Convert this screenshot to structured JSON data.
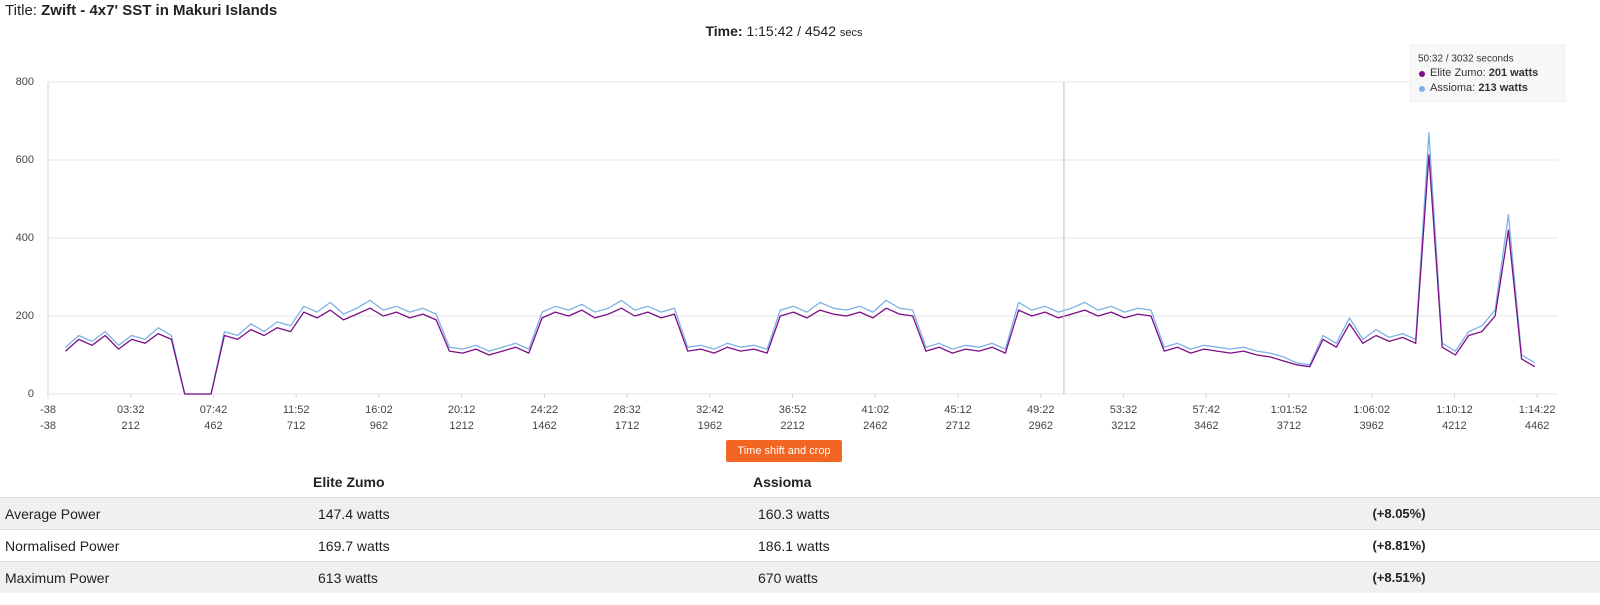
{
  "header": {
    "title_label": "Title:",
    "title": "Zwift - 4x7' SST in Makuri Islands"
  },
  "time": {
    "label": "Time:",
    "value": "1:15:42 / 4542",
    "unit": "secs"
  },
  "chart_data": {
    "type": "line",
    "x": [
      15,
      55,
      95,
      135,
      175,
      215,
      255,
      295,
      335,
      375,
      415,
      455,
      495,
      535,
      575,
      615,
      655,
      695,
      735,
      775,
      815,
      855,
      895,
      935,
      975,
      1015,
      1055,
      1095,
      1135,
      1175,
      1215,
      1255,
      1295,
      1335,
      1375,
      1415,
      1455,
      1495,
      1535,
      1575,
      1615,
      1655,
      1695,
      1735,
      1775,
      1815,
      1855,
      1895,
      1935,
      1975,
      2015,
      2055,
      2095,
      2135,
      2175,
      2215,
      2255,
      2295,
      2335,
      2375,
      2415,
      2455,
      2495,
      2535,
      2575,
      2615,
      2655,
      2695,
      2735,
      2775,
      2815,
      2855,
      2895,
      2935,
      2975,
      3015,
      3055,
      3095,
      3135,
      3175,
      3215,
      3255,
      3295,
      3335,
      3375,
      3415,
      3455,
      3495,
      3535,
      3575,
      3615,
      3655,
      3695,
      3735,
      3775,
      3815,
      3855,
      3895,
      3935,
      3975,
      4015,
      4055,
      4095,
      4135,
      4175,
      4215,
      4255,
      4295,
      4335,
      4375,
      4415,
      4455
    ],
    "series": [
      {
        "name": "Assioma",
        "color": "#7fb2e6",
        "values": [
          120,
          150,
          135,
          160,
          125,
          150,
          140,
          170,
          150,
          0,
          0,
          0,
          160,
          150,
          180,
          160,
          185,
          175,
          225,
          210,
          235,
          205,
          220,
          240,
          215,
          225,
          210,
          220,
          205,
          120,
          115,
          125,
          110,
          120,
          130,
          115,
          210,
          225,
          215,
          230,
          210,
          220,
          240,
          215,
          225,
          210,
          220,
          120,
          125,
          115,
          130,
          120,
          125,
          115,
          215,
          225,
          210,
          235,
          220,
          215,
          225,
          210,
          240,
          220,
          215,
          120,
          130,
          115,
          125,
          120,
          130,
          115,
          235,
          215,
          225,
          210,
          220,
          235,
          215,
          225,
          210,
          220,
          215,
          120,
          130,
          115,
          125,
          120,
          115,
          120,
          110,
          105,
          95,
          80,
          75,
          150,
          130,
          195,
          140,
          165,
          145,
          155,
          140,
          670,
          130,
          110,
          160,
          175,
          215,
          460,
          100,
          80
        ]
      },
      {
        "name": "Elite Zumo",
        "color": "#7b0f86",
        "values": [
          110,
          140,
          125,
          150,
          115,
          140,
          130,
          155,
          140,
          0,
          0,
          0,
          150,
          140,
          165,
          150,
          170,
          160,
          210,
          195,
          215,
          190,
          205,
          220,
          200,
          210,
          195,
          205,
          190,
          110,
          105,
          115,
          100,
          110,
          120,
          105,
          195,
          210,
          200,
          215,
          195,
          205,
          220,
          200,
          210,
          195,
          205,
          110,
          115,
          105,
          120,
          110,
          115,
          105,
          200,
          210,
          195,
          215,
          205,
          200,
          210,
          195,
          220,
          205,
          200,
          110,
          120,
          105,
          115,
          110,
          120,
          105,
          215,
          200,
          210,
          195,
          205,
          215,
          200,
          210,
          195,
          205,
          200,
          110,
          120,
          105,
          115,
          110,
          105,
          110,
          100,
          95,
          85,
          75,
          70,
          140,
          120,
          180,
          130,
          150,
          135,
          145,
          130,
          613,
          120,
          100,
          150,
          160,
          200,
          420,
          90,
          70
        ]
      }
    ],
    "xlim": [
      -38,
      4525
    ],
    "xticks": [
      -38,
      {
        "value": 212,
        "label": "03:32"
      },
      {
        "value": 462,
        "label": "07:42"
      },
      {
        "value": 712,
        "label": "11:52"
      },
      {
        "value": 962,
        "label": "16:02"
      },
      {
        "value": 1212,
        "label": "20:12"
      },
      {
        "value": 1462,
        "label": "24:22"
      },
      {
        "value": 1712,
        "label": "28:32"
      },
      {
        "value": 1962,
        "label": "32:42"
      },
      {
        "value": 2212,
        "label": "36:52"
      },
      {
        "value": 2462,
        "label": "41:02"
      },
      {
        "value": 2712,
        "label": "45:12"
      },
      {
        "value": 2962,
        "label": "49:22"
      },
      {
        "value": 3212,
        "label": "53:32"
      },
      {
        "value": 3462,
        "label": "57:42"
      },
      {
        "value": 3712,
        "label": "1:01:52"
      },
      {
        "value": 3962,
        "label": "1:06:02"
      },
      {
        "value": 4212,
        "label": "1:10:12"
      },
      {
        "value": 4462,
        "label": "1:14:22"
      }
    ],
    "ylim": [
      0,
      800
    ],
    "yticks": [
      0,
      200,
      400,
      600,
      800
    ],
    "grid": true,
    "cursor_x": 3032,
    "tooltip": {
      "header": "50:32 / 3032 seconds",
      "rows": [
        {
          "label": "Elite Zumo:",
          "value": 201,
          "unit": "watts",
          "color": "#7b0f86"
        },
        {
          "label": "Assioma:",
          "value": 213,
          "unit": "watts",
          "color": "#7fb2e6"
        }
      ]
    }
  },
  "button": "Time shift and crop",
  "table": {
    "columns": [
      "Elite Zumo",
      "Assioma"
    ],
    "rows": [
      {
        "label": "Average Power",
        "values": [
          "147.4 watts",
          "160.3 watts"
        ],
        "difference": "(+8.05%)"
      },
      {
        "label": "Normalised Power",
        "values": [
          "169.7 watts",
          "186.1 watts"
        ],
        "difference": "(+8.81%)"
      },
      {
        "label": "Maximum Power",
        "values": [
          "613 watts",
          "670 watts"
        ],
        "difference": "(+8.51%)"
      }
    ]
  }
}
